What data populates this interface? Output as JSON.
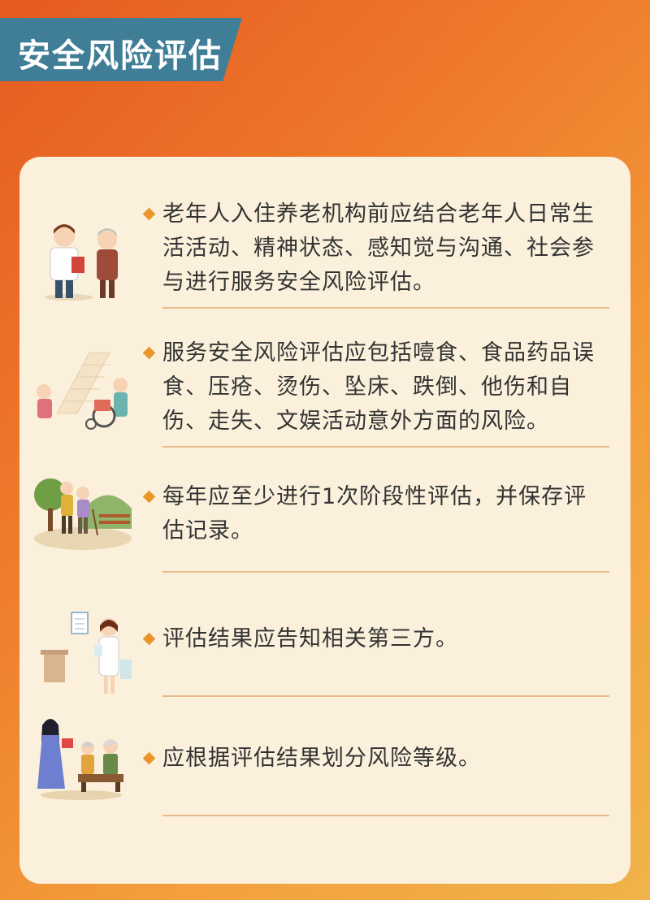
{
  "header": {
    "title": "安全风险评估"
  },
  "items": [
    {
      "text": "老年人入住养老机构前应结合老年人日常生活活动、精神状态、感知觉与沟通、社会参与进行服务安全风险评估。",
      "illustration": "doctor-with-elderly-woman"
    },
    {
      "text": "服务安全风险评估应包括噎食、食品药品误食、压疮、烫伤、坠床、跌倒、他伤和自伤、走失、文娱活动意外方面的风险。",
      "illustration": "caregiver-with-wheelchair"
    },
    {
      "text": "每年应至少进行1次阶段性评估，并保存评估记录。",
      "illustration": "elderly-couple-walking-in-park"
    },
    {
      "text": "评估结果应告知相关第三方。",
      "illustration": "nurse-with-clipboard"
    },
    {
      "text": "应根据评估结果划分风险等级。",
      "illustration": "woman-giving-gift-to-elderly"
    }
  ],
  "colors": {
    "banner": "#3f7e96",
    "card": "#fbf0db",
    "bullet": "#e8962a",
    "divider": "#eab989",
    "background_start": "#e65a1f",
    "background_end": "#f0b34a"
  }
}
